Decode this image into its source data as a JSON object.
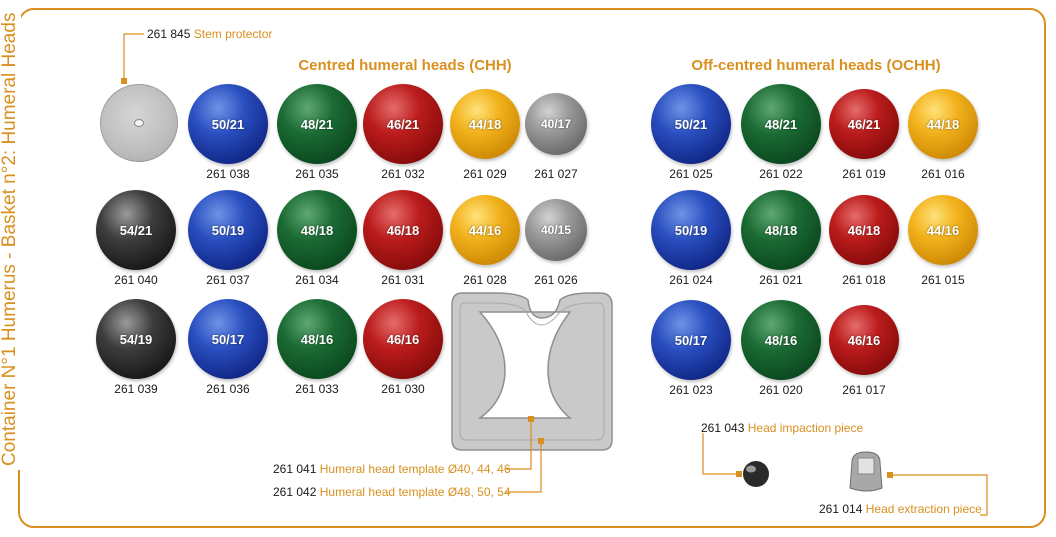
{
  "side_title": "Container N°1 Humerus - Basket n°2: Humeral Heads",
  "sections": {
    "chh": "Centred humeral heads (CHH)",
    "ochh": "Off-centred humeral heads (OCHH)"
  },
  "stem_protector": {
    "code": "261 845",
    "label": "Stem protector"
  },
  "chh_heads": [
    {
      "size": "50/21",
      "code": "261 038",
      "color": "blue"
    },
    {
      "size": "48/21",
      "code": "261 035",
      "color": "green"
    },
    {
      "size": "46/21",
      "code": "261 032",
      "color": "red"
    },
    {
      "size": "44/18",
      "code": "261 029",
      "color": "yellow"
    },
    {
      "size": "40/17",
      "code": "261 027",
      "color": "grey"
    },
    {
      "size": "54/21",
      "code": "261 040",
      "color": "black"
    },
    {
      "size": "50/19",
      "code": "261 037",
      "color": "blue"
    },
    {
      "size": "48/18",
      "code": "261 034",
      "color": "green"
    },
    {
      "size": "46/18",
      "code": "261 031",
      "color": "red"
    },
    {
      "size": "44/16",
      "code": "261 028",
      "color": "yellow"
    },
    {
      "size": "40/15",
      "code": "261 026",
      "color": "grey"
    },
    {
      "size": "54/19",
      "code": "261 039",
      "color": "black"
    },
    {
      "size": "50/17",
      "code": "261 036",
      "color": "blue"
    },
    {
      "size": "48/16",
      "code": "261 033",
      "color": "green"
    },
    {
      "size": "46/16",
      "code": "261 030",
      "color": "red"
    }
  ],
  "ochh_heads": [
    {
      "size": "50/21",
      "code": "261 025",
      "color": "blue"
    },
    {
      "size": "48/21",
      "code": "261 022",
      "color": "green"
    },
    {
      "size": "46/21",
      "code": "261 019",
      "color": "red"
    },
    {
      "size": "44/18",
      "code": "261 016",
      "color": "yellow"
    },
    {
      "size": "50/19",
      "code": "261 024",
      "color": "blue"
    },
    {
      "size": "48/18",
      "code": "261 021",
      "color": "green"
    },
    {
      "size": "46/18",
      "code": "261 018",
      "color": "red"
    },
    {
      "size": "44/16",
      "code": "261 015",
      "color": "yellow"
    },
    {
      "size": "50/17",
      "code": "261 023",
      "color": "blue"
    },
    {
      "size": "48/16",
      "code": "261 020",
      "color": "green"
    },
    {
      "size": "46/16",
      "code": "261 017",
      "color": "red"
    }
  ],
  "templates": [
    {
      "code": "261 041",
      "label": "Humeral head template Ø40, 44, 46"
    },
    {
      "code": "261 042",
      "label": "Humeral head template Ø48, 50, 54"
    }
  ],
  "impaction": {
    "code": "261 043",
    "label": "Head impaction piece"
  },
  "extraction": {
    "code": "261 014",
    "label": "Head extraction piece"
  },
  "colors": {
    "accent": "#d9901f"
  }
}
